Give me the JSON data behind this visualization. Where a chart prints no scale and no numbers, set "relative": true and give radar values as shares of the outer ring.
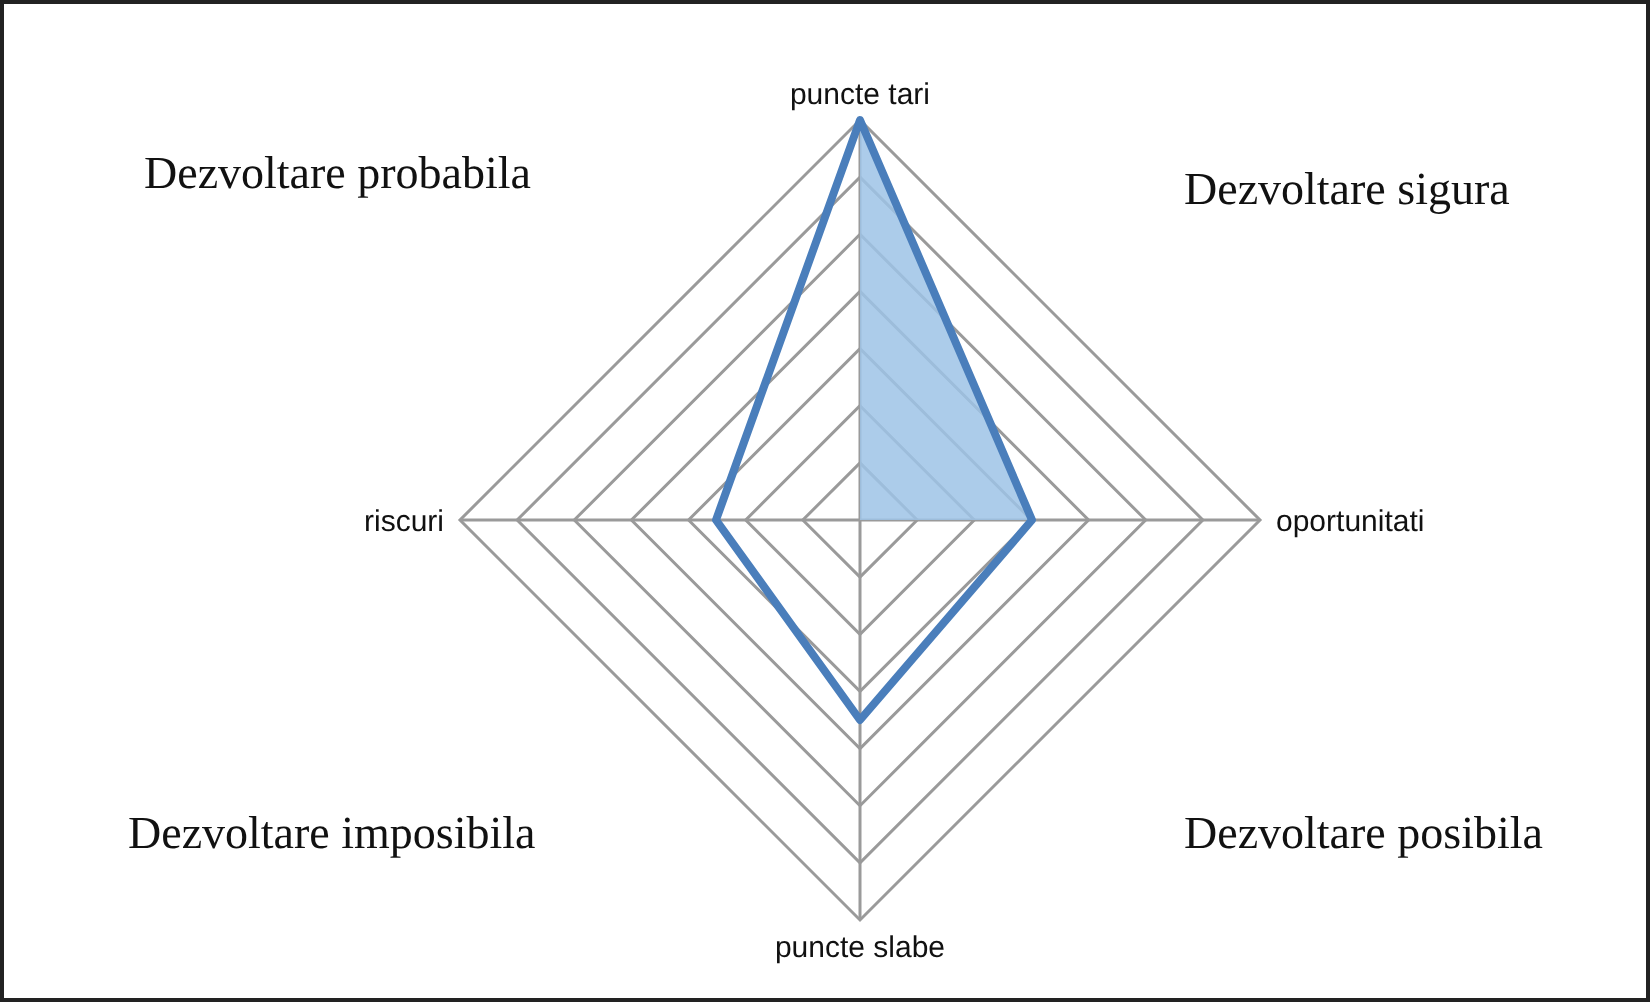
{
  "chart_data": {
    "type": "radar",
    "relative": true,
    "categories": [
      "puncte tari",
      "oportunitati",
      "puncte slabe",
      "riscuri"
    ],
    "series": [
      {
        "color": "#9dc3e6",
        "values": [
          1,
          0.43,
          0,
          0
        ]
      },
      {
        "color": "#4a7ebb",
        "values": [
          1,
          0.43,
          0.5,
          0.36
        ]
      }
    ],
    "annotations": [
      "Dezvoltare probabila",
      "Dezvoltare sigura",
      "Dezvoltare imposibila",
      "Dezvoltare posibila"
    ],
    "grid": true,
    "legend": false,
    "marker": "none",
    "line_style": "solid"
  }
}
